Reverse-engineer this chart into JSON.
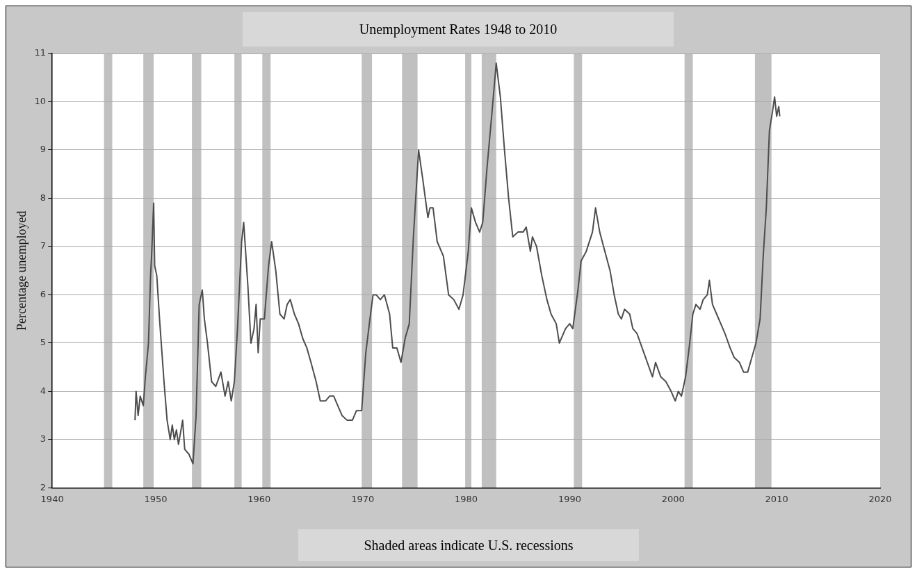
{
  "chart_data": {
    "type": "line",
    "title": "Unemployment Rates 1948 to 2010",
    "ylabel": "Percentage unemployed",
    "annotations": [
      "Shaded areas indicate U.S. recessions"
    ],
    "x": [
      1948.0,
      1948.1,
      1948.3,
      1948.5,
      1948.8,
      1949.0,
      1949.3,
      1949.5,
      1949.6,
      1949.8,
      1949.9,
      1950.1,
      1950.4,
      1950.8,
      1951.1,
      1951.4,
      1951.6,
      1951.8,
      1952.0,
      1952.2,
      1952.6,
      1952.8,
      1953.2,
      1953.6,
      1953.9,
      1954.2,
      1954.5,
      1954.7,
      1955.0,
      1955.4,
      1955.8,
      1956.3,
      1956.7,
      1957.0,
      1957.3,
      1957.6,
      1957.9,
      1958.3,
      1958.5,
      1958.9,
      1959.2,
      1959.5,
      1959.7,
      1959.9,
      1960.1,
      1960.5,
      1960.9,
      1961.2,
      1961.6,
      1962.0,
      1962.4,
      1962.7,
      1963.0,
      1963.4,
      1963.8,
      1964.2,
      1964.6,
      1965.0,
      1965.5,
      1965.9,
      1966.4,
      1966.8,
      1967.2,
      1967.6,
      1968.0,
      1968.5,
      1969.0,
      1969.4,
      1969.9,
      1970.3,
      1970.7,
      1971.0,
      1971.3,
      1971.7,
      1972.1,
      1972.6,
      1972.9,
      1973.3,
      1973.7,
      1974.1,
      1974.5,
      1974.9,
      1975.4,
      1975.8,
      1976.3,
      1976.5,
      1976.8,
      1977.2,
      1977.8,
      1978.3,
      1978.8,
      1979.3,
      1979.7,
      1980.2,
      1980.5,
      1980.9,
      1981.3,
      1981.6,
      1982.0,
      1982.5,
      1982.9,
      1983.3,
      1983.7,
      1984.1,
      1984.5,
      1985.0,
      1985.5,
      1985.8,
      1986.2,
      1986.4,
      1986.8,
      1987.3,
      1987.8,
      1988.2,
      1988.7,
      1989.0,
      1989.6,
      1990.0,
      1990.3,
      1990.8,
      1991.1,
      1991.6,
      1992.2,
      1992.5,
      1992.9,
      1993.4,
      1993.9,
      1994.3,
      1994.7,
      1995.0,
      1995.3,
      1995.8,
      1996.1,
      1996.5,
      1997.0,
      1997.5,
      1998.0,
      1998.3,
      1998.8,
      1999.3,
      1999.8,
      2000.2,
      2000.5,
      2000.8,
      2001.2,
      2001.6,
      2001.9,
      2002.2,
      2002.6,
      2002.9,
      2003.3,
      2003.5,
      2003.8,
      2004.2,
      2004.6,
      2005.0,
      2005.5,
      2005.9,
      2006.4,
      2006.8,
      2007.2,
      2007.6,
      2008.0,
      2008.4,
      2008.7,
      2009.0,
      2009.3,
      2009.6,
      2009.8,
      2010.0,
      2010.2,
      2010.3
    ],
    "series": [
      {
        "color": "#4d4d4d",
        "values": [
          3.4,
          4.0,
          3.5,
          3.9,
          3.7,
          4.3,
          5.0,
          6.4,
          6.8,
          7.9,
          6.6,
          6.4,
          5.4,
          4.2,
          3.4,
          3.0,
          3.3,
          3.0,
          3.2,
          2.9,
          3.4,
          2.8,
          2.7,
          2.5,
          3.5,
          5.8,
          6.1,
          5.5,
          5.0,
          4.2,
          4.1,
          4.4,
          3.9,
          4.2,
          3.8,
          4.2,
          5.3,
          7.1,
          7.5,
          6.2,
          5.0,
          5.3,
          5.8,
          4.8,
          5.5,
          5.5,
          6.6,
          7.1,
          6.5,
          5.6,
          5.5,
          5.8,
          5.9,
          5.6,
          5.4,
          5.1,
          4.9,
          4.6,
          4.2,
          3.8,
          3.8,
          3.9,
          3.9,
          3.7,
          3.5,
          3.4,
          3.4,
          3.6,
          3.6,
          4.8,
          5.5,
          6.0,
          6.0,
          5.9,
          6.0,
          5.6,
          4.9,
          4.9,
          4.6,
          5.1,
          5.4,
          7.2,
          9.0,
          8.4,
          7.6,
          7.8,
          7.8,
          7.1,
          6.8,
          6.0,
          5.9,
          5.7,
          6.0,
          6.9,
          7.8,
          7.5,
          7.3,
          7.5,
          8.6,
          9.8,
          10.8,
          10.1,
          9.0,
          8.0,
          7.2,
          7.3,
          7.3,
          7.4,
          6.9,
          7.2,
          7.0,
          6.4,
          5.9,
          5.6,
          5.4,
          5.0,
          5.3,
          5.4,
          5.3,
          6.1,
          6.7,
          6.9,
          7.3,
          7.8,
          7.3,
          6.9,
          6.5,
          6.0,
          5.6,
          5.5,
          5.7,
          5.6,
          5.3,
          5.2,
          4.9,
          4.6,
          4.3,
          4.6,
          4.3,
          4.2,
          4.0,
          3.8,
          4.0,
          3.9,
          4.3,
          5.0,
          5.6,
          5.8,
          5.7,
          5.9,
          6.0,
          6.3,
          5.8,
          5.6,
          5.4,
          5.2,
          4.9,
          4.7,
          4.6,
          4.4,
          4.4,
          4.7,
          5.0,
          5.5,
          6.8,
          7.8,
          9.4,
          9.8,
          10.1,
          9.7,
          9.9,
          9.7
        ]
      }
    ],
    "xlim": [
      1940,
      2020
    ],
    "xticks": [
      1940,
      1950,
      1960,
      1970,
      1980,
      1990,
      2000,
      2010,
      2020
    ],
    "ylim": [
      2,
      11
    ],
    "yticks": [
      2,
      3,
      4,
      5,
      6,
      7,
      8,
      9,
      10,
      11
    ],
    "grid": "y",
    "bands": [
      {
        "axis": "x",
        "from": 1945.0,
        "to": 1945.8,
        "color": "#c0c0c0"
      },
      {
        "axis": "x",
        "from": 1948.8,
        "to": 1949.8,
        "color": "#c0c0c0"
      },
      {
        "axis": "x",
        "from": 1953.5,
        "to": 1954.4,
        "color": "#c0c0c0"
      },
      {
        "axis": "x",
        "from": 1957.6,
        "to": 1958.3,
        "color": "#c0c0c0"
      },
      {
        "axis": "x",
        "from": 1960.3,
        "to": 1961.1,
        "color": "#c0c0c0"
      },
      {
        "axis": "x",
        "from": 1969.9,
        "to": 1970.9,
        "color": "#c0c0c0"
      },
      {
        "axis": "x",
        "from": 1973.8,
        "to": 1975.3,
        "color": "#c0c0c0"
      },
      {
        "axis": "x",
        "from": 1979.9,
        "to": 1980.5,
        "color": "#c0c0c0"
      },
      {
        "axis": "x",
        "from": 1981.5,
        "to": 1982.9,
        "color": "#c0c0c0"
      },
      {
        "axis": "x",
        "from": 1990.4,
        "to": 1991.2,
        "color": "#c0c0c0"
      },
      {
        "axis": "x",
        "from": 2001.1,
        "to": 2001.9,
        "color": "#c0c0c0"
      },
      {
        "axis": "x",
        "from": 2007.9,
        "to": 2009.5,
        "color": "#c0c0c0"
      }
    ]
  }
}
